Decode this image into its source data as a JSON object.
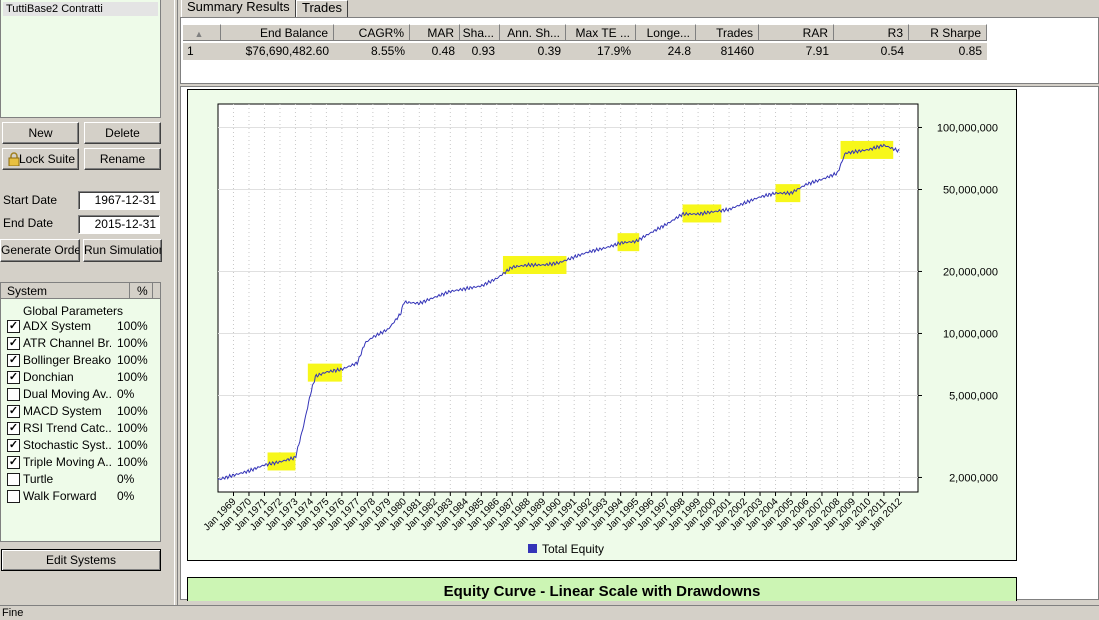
{
  "suite_list": {
    "selected": "TuttiBase2 Contratti"
  },
  "buttons": {
    "new": "New",
    "delete": "Delete",
    "lock_suite": "Lock Suite",
    "rename": "Rename",
    "generate_orders": "Generate Orders",
    "run_simulation": "Run Simulation",
    "edit_systems": "Edit Systems"
  },
  "dates": {
    "start_label": "Start Date",
    "start_value": "1967-12-31",
    "end_label": "End Date",
    "end_value": "2015-12-31"
  },
  "systems": {
    "col_system": "System",
    "col_pct": "%",
    "global_params": "Global Parameters",
    "items": [
      {
        "name": "ADX System",
        "checked": true,
        "pct": "100%"
      },
      {
        "name": "ATR Channel Br...",
        "checked": true,
        "pct": "100%"
      },
      {
        "name": "Bollinger Breakout",
        "checked": true,
        "pct": "100%"
      },
      {
        "name": "Donchian",
        "checked": true,
        "pct": "100%"
      },
      {
        "name": "Dual Moving Av...",
        "checked": false,
        "pct": "0%"
      },
      {
        "name": "MACD System",
        "checked": true,
        "pct": "100%"
      },
      {
        "name": "RSI Trend Catc...",
        "checked": true,
        "pct": "100%"
      },
      {
        "name": "Stochastic Syst...",
        "checked": true,
        "pct": "100%"
      },
      {
        "name": "Triple Moving A...",
        "checked": true,
        "pct": "100%"
      },
      {
        "name": "Turtle",
        "checked": false,
        "pct": "0%"
      },
      {
        "name": "Walk Forward",
        "checked": false,
        "pct": "0%"
      }
    ]
  },
  "tabs": [
    "Summary Results",
    "Trades"
  ],
  "summary_table": {
    "headers": [
      "",
      "End Balance",
      "CAGR%",
      "MAR",
      "Sha...",
      "Ann. Sh...",
      "Max TE ...",
      "Longe...",
      "Trades",
      "RAR",
      "R3",
      "R Sharpe"
    ],
    "row": [
      "1",
      "$76,690,482.60",
      "8.55%",
      "0.48",
      "0.93",
      "0.39",
      "17.9%",
      "24.8",
      "81460",
      "7.91",
      "0.54",
      "0.85"
    ]
  },
  "chart_data": {
    "type": "line",
    "y_scale": "log",
    "ylim": [
      1700000,
      130000000
    ],
    "y_ticks": [
      "2,000,000",
      "5,000,000",
      "10,000,000",
      "20,000,000",
      "50,000,000",
      "100,000,000"
    ],
    "y_tick_values": [
      2000000,
      5000000,
      10000000,
      20000000,
      50000000,
      100000000
    ],
    "x_ticks": [
      "Jan 1969",
      "Jan 1970",
      "Jan 1971",
      "Jan 1972",
      "Jan 1973",
      "Jan 1974",
      "Jan 1975",
      "Jan 1976",
      "Jan 1977",
      "Jan 1978",
      "Jan 1979",
      "Jan 1980",
      "Jan 1981",
      "Jan 1982",
      "Jan 1983",
      "Jan 1984",
      "Jan 1985",
      "Jan 1986",
      "Jan 1987",
      "Jan 1988",
      "Jan 1989",
      "Jan 1990",
      "Jan 1991",
      "Jan 1992",
      "Jan 1993",
      "Jan 1994",
      "Jan 1995",
      "Jan 1996",
      "Jan 1997",
      "Jan 1998",
      "Jan 1999",
      "Jan 2000",
      "Jan 2001",
      "Jan 2002",
      "Jan 2003",
      "Jan 2004",
      "Jan 2005",
      "Jan 2006",
      "Jan 2007",
      "Jan 2008",
      "Jan 2009",
      "Jan 2010",
      "Jan 2011",
      "Jan 2012"
    ],
    "grid": true,
    "legend": "bottom-center",
    "series": [
      {
        "name": "Total Equity",
        "color": "#3434b8",
        "x": [
          1968.0,
          1969.0,
          1970.0,
          1971.0,
          1972.0,
          1973.0,
          1973.5,
          1974.0,
          1974.3,
          1975.0,
          1976.0,
          1977.0,
          1977.5,
          1978.0,
          1979.0,
          1979.8,
          1980.0,
          1981.0,
          1982.0,
          1983.0,
          1984.0,
          1985.0,
          1986.0,
          1987.0,
          1988.0,
          1989.0,
          1990.0,
          1991.0,
          1992.0,
          1993.0,
          1994.0,
          1995.0,
          1996.0,
          1997.0,
          1998.0,
          1999.0,
          2000.0,
          2001.0,
          2002.0,
          2003.0,
          2004.0,
          2005.0,
          2006.0,
          2007.0,
          2008.0,
          2008.5,
          2009.0,
          2010.0,
          2011.0,
          2012.0
        ],
        "values": [
          1950000,
          2050000,
          2150000,
          2300000,
          2380000,
          2500000,
          3500000,
          5200000,
          6200000,
          6500000,
          6700000,
          7200000,
          9000000,
          9600000,
          10500000,
          12500000,
          14200000,
          14000000,
          15000000,
          16000000,
          16500000,
          17000000,
          18500000,
          21000000,
          21500000,
          21500000,
          22000000,
          23500000,
          25000000,
          26000000,
          27500000,
          28000000,
          31000000,
          34000000,
          38000000,
          38000000,
          39000000,
          40000000,
          43000000,
          46000000,
          48000000,
          48000000,
          53000000,
          56000000,
          60000000,
          75000000,
          76000000,
          78000000,
          82000000,
          76690000
        ]
      }
    ],
    "highlights": [
      [
        1971.2,
        1973.0
      ],
      [
        1973.8,
        1976.0
      ],
      [
        1986.4,
        1990.5
      ],
      [
        1993.8,
        1995.2
      ],
      [
        1998.0,
        2000.5
      ],
      [
        2004.0,
        2005.6
      ],
      [
        2008.2,
        2011.6
      ]
    ],
    "highlight_color": "#f7f71a"
  },
  "chart2": {
    "title": "Equity Curve - Linear Scale with Drawdowns"
  },
  "status": {
    "text": "Fine"
  }
}
